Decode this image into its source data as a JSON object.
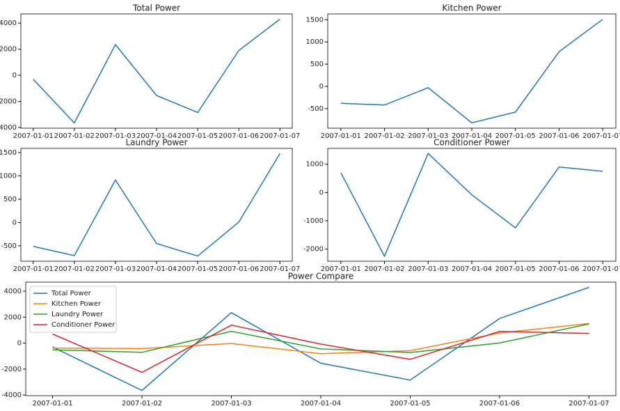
{
  "chart_data": [
    {
      "type": "line",
      "title": "Total Power",
      "categories": [
        "2007-01-01",
        "2007-01-02",
        "2007-01-03",
        "2007-01-04",
        "2007-01-05",
        "2007-01-06",
        "2007-01-07"
      ],
      "values": [
        -300,
        -3650,
        2350,
        -1550,
        -2850,
        1900,
        4300
      ],
      "color": "#1f77b4",
      "ylim": [
        -4050,
        4700
      ],
      "yticks": [
        -4000,
        -2000,
        0,
        2000,
        4000
      ]
    },
    {
      "type": "line",
      "title": "Kitchen Power",
      "categories": [
        "2007-01-01",
        "2007-01-02",
        "2007-01-03",
        "2007-01-04",
        "2007-01-05",
        "2007-01-06",
        "2007-01-07"
      ],
      "values": [
        -380,
        -420,
        -30,
        -820,
        -580,
        780,
        1510
      ],
      "color": "#1f77b4",
      "ylim": [
        -940,
        1630
      ],
      "yticks": [
        -500,
        0,
        500,
        1000,
        1500
      ]
    },
    {
      "type": "line",
      "title": "Laundry Power",
      "categories": [
        "2007-01-01",
        "2007-01-02",
        "2007-01-03",
        "2007-01-04",
        "2007-01-05",
        "2007-01-06",
        "2007-01-07"
      ],
      "values": [
        -510,
        -710,
        910,
        -450,
        -720,
        10,
        1480
      ],
      "color": "#1f77b4",
      "ylim": [
        -830,
        1590
      ],
      "yticks": [
        -500,
        0,
        500,
        1000,
        1500
      ]
    },
    {
      "type": "line",
      "title": "Conditioner Power",
      "categories": [
        "2007-01-01",
        "2007-01-02",
        "2007-01-03",
        "2007-01-04",
        "2007-01-05",
        "2007-01-06",
        "2007-01-07"
      ],
      "values": [
        700,
        -2250,
        1380,
        -80,
        -1250,
        900,
        750
      ],
      "color": "#1f77b4",
      "ylim": [
        -2430,
        1560
      ],
      "yticks": [
        -2000,
        -1000,
        0,
        1000
      ]
    },
    {
      "type": "line",
      "title": "Power Compare",
      "categories": [
        "2007-01-01",
        "2007-01-02",
        "2007-01-03",
        "2007-01-04",
        "2007-01-05",
        "2007-01-06",
        "2007-01-07"
      ],
      "series": [
        {
          "name": "Total Power",
          "color": "#1f77b4",
          "values": [
            -300,
            -3650,
            2350,
            -1550,
            -2850,
            1900,
            4300
          ]
        },
        {
          "name": "Kitchen Power",
          "color": "#ff7f0e",
          "values": [
            -380,
            -420,
            -30,
            -820,
            -580,
            780,
            1510
          ]
        },
        {
          "name": "Laundry Power",
          "color": "#2ca02c",
          "values": [
            -510,
            -710,
            910,
            -450,
            -720,
            10,
            1480
          ]
        },
        {
          "name": "Conditioner Power",
          "color": "#d62728",
          "values": [
            700,
            -2250,
            1380,
            -80,
            -1250,
            900,
            750
          ]
        }
      ],
      "ylim": [
        -4050,
        4700
      ],
      "yticks": [
        -4000,
        -2000,
        0,
        2000,
        4000
      ],
      "legend": "upper left"
    }
  ]
}
